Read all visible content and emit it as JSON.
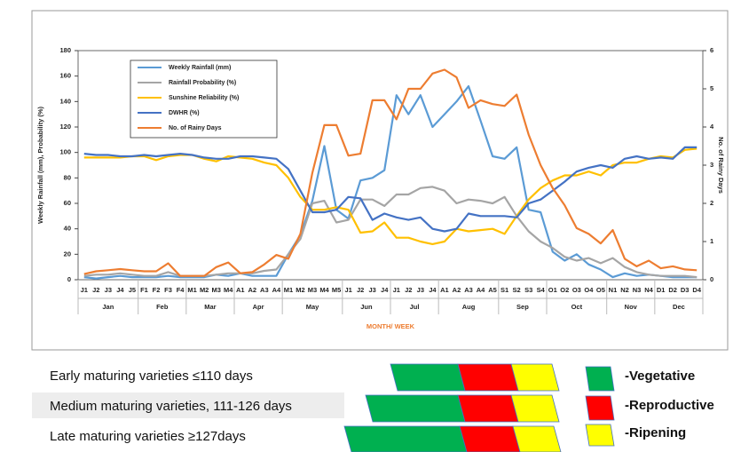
{
  "chart_data": {
    "type": "line",
    "x_label": "MONTH/ WEEK",
    "y_label": "Weekly Rainfall (mm), Probability (%)",
    "y2_label": "No. of Rainy Days",
    "groups": [
      {
        "name": "Jan",
        "categories": [
          "J1",
          "J2",
          "J3",
          "J4",
          "J5"
        ]
      },
      {
        "name": "Feb",
        "categories": [
          "F1",
          "F2",
          "F3",
          "F4"
        ]
      },
      {
        "name": "Mar",
        "categories": [
          "M1",
          "M2",
          "M3",
          "M4"
        ]
      },
      {
        "name": "Apr",
        "categories": [
          "A1",
          "A2",
          "A3",
          "A4"
        ]
      },
      {
        "name": "May",
        "categories": [
          "M1",
          "M2",
          "M3",
          "M4",
          "M5"
        ]
      },
      {
        "name": "Jun",
        "categories": [
          "J1",
          "J2",
          "J3",
          "J4"
        ]
      },
      {
        "name": "Jul",
        "categories": [
          "J1",
          "J2",
          "J3",
          "J4"
        ]
      },
      {
        "name": "Aug",
        "categories": [
          "A1",
          "A2",
          "A3",
          "A4",
          "A5"
        ]
      },
      {
        "name": "Sep",
        "categories": [
          "S1",
          "S2",
          "S3",
          "S4"
        ]
      },
      {
        "name": "Oct",
        "categories": [
          "O1",
          "O2",
          "O3",
          "O4",
          "O5"
        ]
      },
      {
        "name": "Nov",
        "categories": [
          "N1",
          "N2",
          "N3",
          "N4"
        ]
      },
      {
        "name": "Dec",
        "categories": [
          "D1",
          "D2",
          "D3",
          "D4"
        ]
      }
    ],
    "ylim": [
      0,
      180
    ],
    "yticks": [
      0,
      20,
      40,
      60,
      80,
      100,
      120,
      140,
      160,
      180
    ],
    "y2lim": [
      0,
      6
    ],
    "y2ticks": [
      0,
      1,
      2,
      3,
      4,
      5,
      6
    ],
    "grid": false,
    "legend": "upper left",
    "series": [
      {
        "name": "Weekly Rainfall (mm)",
        "color": "#5b9bd5",
        "values": [
          2,
          1,
          2,
          3,
          2,
          2,
          2,
          3,
          2,
          2,
          2,
          4,
          3,
          5,
          3,
          3,
          3,
          20,
          35,
          62,
          105,
          55,
          48,
          78,
          80,
          86,
          145,
          130,
          145,
          120,
          130,
          140,
          152,
          125,
          97,
          95,
          104,
          55,
          53,
          22,
          15,
          20,
          12,
          8,
          2,
          5,
          3,
          4,
          3,
          2,
          2,
          2
        ]
      },
      {
        "name": "Rainfall Probability (%)",
        "color": "#a5a5a5",
        "values": [
          3,
          4,
          4,
          5,
          4,
          3,
          3,
          6,
          3,
          3,
          3,
          4,
          5,
          5,
          5,
          7,
          8,
          20,
          32,
          60,
          62,
          45,
          47,
          63,
          63,
          58,
          67,
          67,
          72,
          73,
          70,
          60,
          63,
          62,
          60,
          65,
          50,
          38,
          30,
          25,
          18,
          15,
          17,
          13,
          17,
          10,
          6,
          4,
          3,
          3,
          3,
          2
        ]
      },
      {
        "name": "Sunshine Reliability (%)",
        "color": "#ffc000",
        "values": [
          96,
          96,
          96,
          96,
          97,
          97,
          94,
          97,
          98,
          98,
          95,
          93,
          97,
          96,
          95,
          92,
          90,
          80,
          65,
          55,
          55,
          57,
          55,
          37,
          38,
          45,
          33,
          33,
          30,
          28,
          30,
          40,
          38,
          39,
          40,
          36,
          50,
          63,
          72,
          78,
          82,
          82,
          85,
          82,
          90,
          92,
          92,
          95,
          97,
          96,
          102,
          103
        ]
      },
      {
        "name": "DWHR (%)",
        "color": "#4472c4",
        "values": [
          99,
          98,
          98,
          97,
          97,
          98,
          97,
          98,
          99,
          98,
          96,
          95,
          95,
          97,
          97,
          96,
          95,
          87,
          70,
          53,
          53,
          55,
          65,
          64,
          47,
          52,
          49,
          47,
          49,
          40,
          38,
          40,
          52,
          50,
          50,
          50,
          49,
          60,
          63,
          70,
          77,
          85,
          88,
          90,
          88,
          95,
          97,
          95,
          96,
          95,
          104,
          104
        ]
      },
      {
        "name": "No. of Rainy Days",
        "color": "#ed7d31",
        "axis": "y2",
        "values": [
          0.15,
          0.22,
          0.25,
          0.28,
          0.25,
          0.22,
          0.22,
          0.43,
          0.1,
          0.1,
          0.1,
          0.33,
          0.45,
          0.17,
          0.2,
          0.4,
          0.65,
          0.55,
          1.2,
          2.8,
          4.05,
          4.05,
          3.25,
          3.3,
          4.7,
          4.7,
          4.2,
          5.0,
          5.0,
          5.4,
          5.5,
          5.3,
          4.5,
          4.7,
          4.6,
          4.55,
          4.85,
          3.8,
          3.0,
          2.4,
          1.95,
          1.35,
          1.2,
          0.95,
          1.3,
          0.55,
          0.35,
          0.5,
          0.3,
          0.35,
          0.27,
          0.25
        ]
      }
    ]
  },
  "maturity": {
    "rows": [
      "Early maturing varieties ≤110 days",
      "Medium maturing varieties, 111-126 days",
      "Late maturing varieties ≥127days"
    ],
    "legend": [
      "-Vegetative",
      "-Reproductive",
      "-Ripening"
    ]
  }
}
